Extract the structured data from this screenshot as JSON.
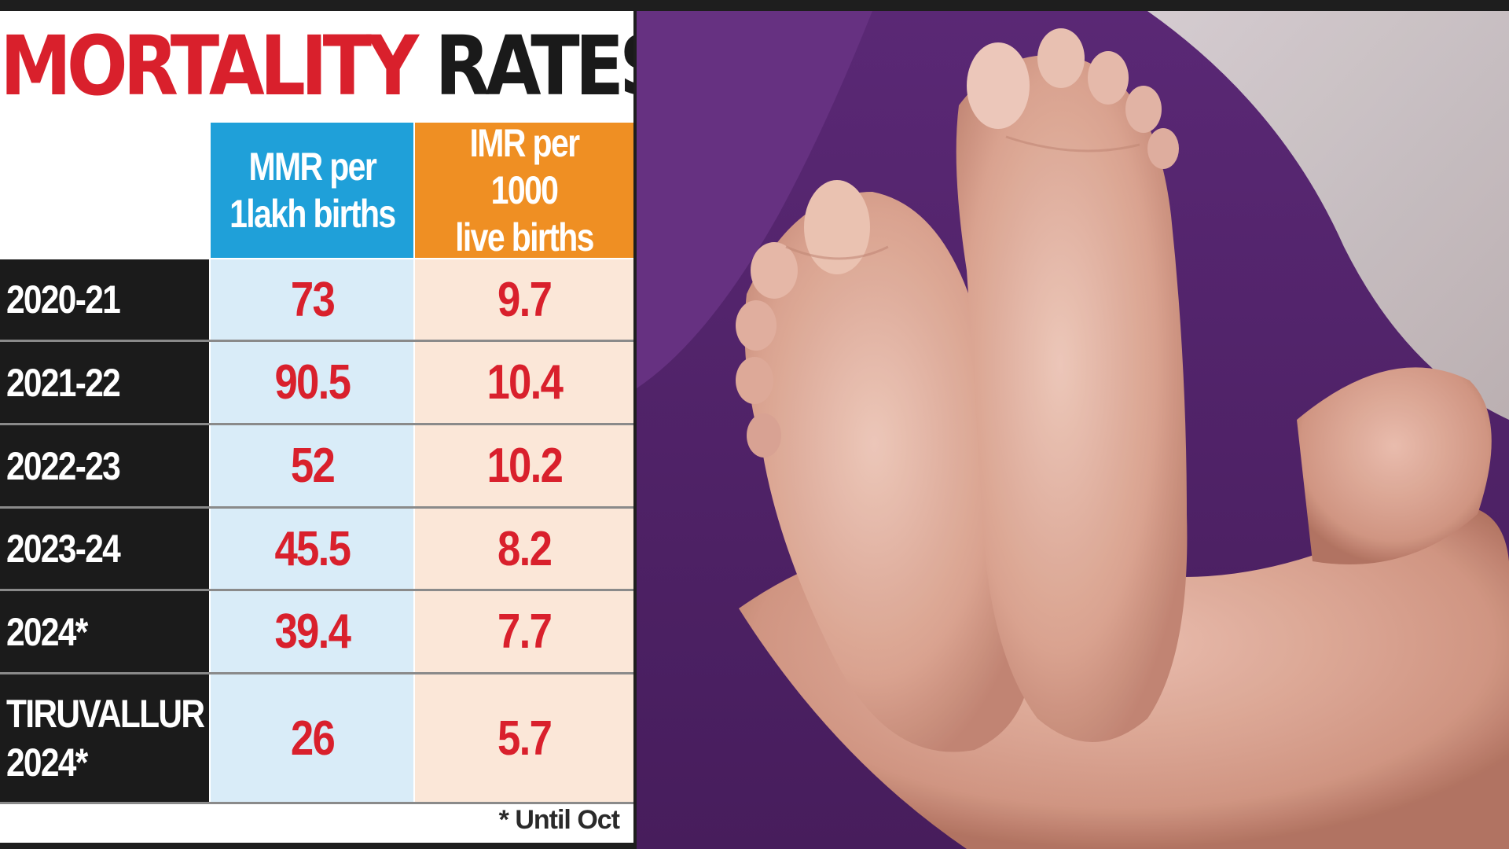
{
  "title": {
    "part1": "MORTALITY",
    "part2": "RATES"
  },
  "columns": {
    "mmr": {
      "line1": "MMR per",
      "line2": "1lakh births"
    },
    "imr": {
      "line1": "IMR per 1000",
      "line2": "live births"
    }
  },
  "rows": [
    {
      "label": "2020-21",
      "mmr": "73",
      "imr": "9.7"
    },
    {
      "label": "2021-22",
      "mmr": "90.5",
      "imr": "10.4"
    },
    {
      "label": "2022-23",
      "mmr": "52",
      "imr": "10.2"
    },
    {
      "label": "2023-24",
      "mmr": "45.5",
      "imr": "8.2"
    },
    {
      "label": "2024*",
      "mmr": "39.4",
      "imr": "7.7"
    },
    {
      "label": "TIRUVALLUR 2024*",
      "label_line1": "TIRUVALLUR",
      "label_line2": "2024*",
      "mmr": "26",
      "imr": "5.7"
    }
  ],
  "footnote": "* Until Oct",
  "colors": {
    "title_red": "#d9202c",
    "mmr_header": "#1fa0d9",
    "imr_header": "#ef8f23",
    "mmr_cell": "#d9ecf8",
    "imr_cell": "#fbe7d8",
    "value_red": "#d9202c",
    "label_bg": "#1b1b1b"
  },
  "chart_data": {
    "type": "table",
    "title": "MORTALITY RATES",
    "columns": [
      "",
      "MMR per 1lakh births",
      "IMR per 1000 live births"
    ],
    "categories": [
      "2020-21",
      "2021-22",
      "2022-23",
      "2023-24",
      "2024*",
      "TIRUVALLUR 2024*"
    ],
    "series": [
      {
        "name": "MMR per 1lakh births",
        "values": [
          73,
          90.5,
          52,
          45.5,
          39.4,
          26
        ]
      },
      {
        "name": "IMR per 1000 live births",
        "values": [
          9.7,
          10.4,
          10.2,
          8.2,
          7.7,
          5.7
        ]
      }
    ],
    "footnote": "* Until Oct"
  },
  "photo": {
    "subject-icon": "baby-feet-photo"
  }
}
